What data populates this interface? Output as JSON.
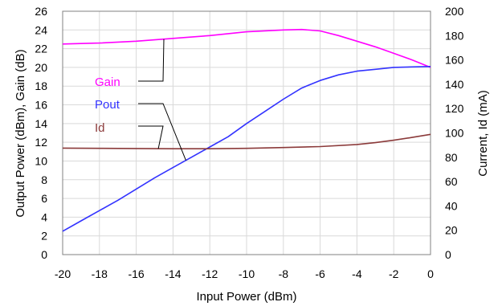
{
  "chart_data": {
    "type": "line",
    "xlabel": "Input Power (dBm)",
    "ylabel": "Output Power (dBm), Gain (dB)",
    "y2label": "Current, Id (mA)",
    "xlim": [
      -20,
      0
    ],
    "ylim": [
      0,
      26
    ],
    "y2lim": [
      0,
      200
    ],
    "grid": true,
    "x_ticks": [
      "-20",
      "-18",
      "-16",
      "-14",
      "-12",
      "-10",
      "-8",
      "-6",
      "-4",
      "-2",
      "0"
    ],
    "y_ticks": [
      "0",
      "2",
      "4",
      "6",
      "8",
      "10",
      "12",
      "14",
      "16",
      "18",
      "20",
      "22",
      "24",
      "26"
    ],
    "y2_ticks": [
      "0",
      "20",
      "40",
      "60",
      "80",
      "100",
      "120",
      "140",
      "160",
      "180",
      "200"
    ],
    "series": [
      {
        "name": "Gain",
        "axis": "left",
        "color": "#ff00ff",
        "x": [
          -20,
          -18,
          -16,
          -14,
          -12,
          -10,
          -8,
          -7,
          -6,
          -5,
          -4,
          -3,
          -2,
          -1,
          0
        ],
        "y": [
          22.5,
          22.6,
          22.8,
          23.1,
          23.4,
          23.8,
          24.0,
          24.05,
          23.9,
          23.4,
          22.8,
          22.2,
          21.5,
          20.8,
          20.0
        ]
      },
      {
        "name": "Pout",
        "axis": "left",
        "color": "#3333ff",
        "x": [
          -20,
          -19,
          -18,
          -17,
          -16,
          -15,
          -14,
          -13,
          -12,
          -11,
          -10,
          -9,
          -8,
          -7,
          -6,
          -5,
          -4,
          -3,
          -2,
          -1,
          0
        ],
        "y": [
          2.5,
          3.6,
          4.7,
          5.8,
          7.0,
          8.2,
          9.3,
          10.4,
          11.5,
          12.6,
          14.0,
          15.3,
          16.6,
          17.8,
          18.6,
          19.2,
          19.6,
          19.8,
          20.0,
          20.05,
          20.1
        ]
      },
      {
        "name": "Id",
        "axis": "right",
        "color": "#8b3a3a",
        "x": [
          -20,
          -18,
          -16,
          -14,
          -12,
          -10,
          -8,
          -6,
          -4,
          -3,
          -2,
          -1,
          0
        ],
        "y": [
          87.5,
          87.3,
          87.2,
          87.0,
          87.0,
          87.3,
          88.0,
          88.8,
          90.5,
          92.0,
          94.0,
          96.3,
          98.8
        ]
      }
    ],
    "legend": [
      {
        "label": "Gain",
        "color": "#ff00ff"
      },
      {
        "label": "Pout",
        "color": "#3333ff"
      },
      {
        "label": "Id",
        "color": "#8b3a3a"
      }
    ]
  }
}
